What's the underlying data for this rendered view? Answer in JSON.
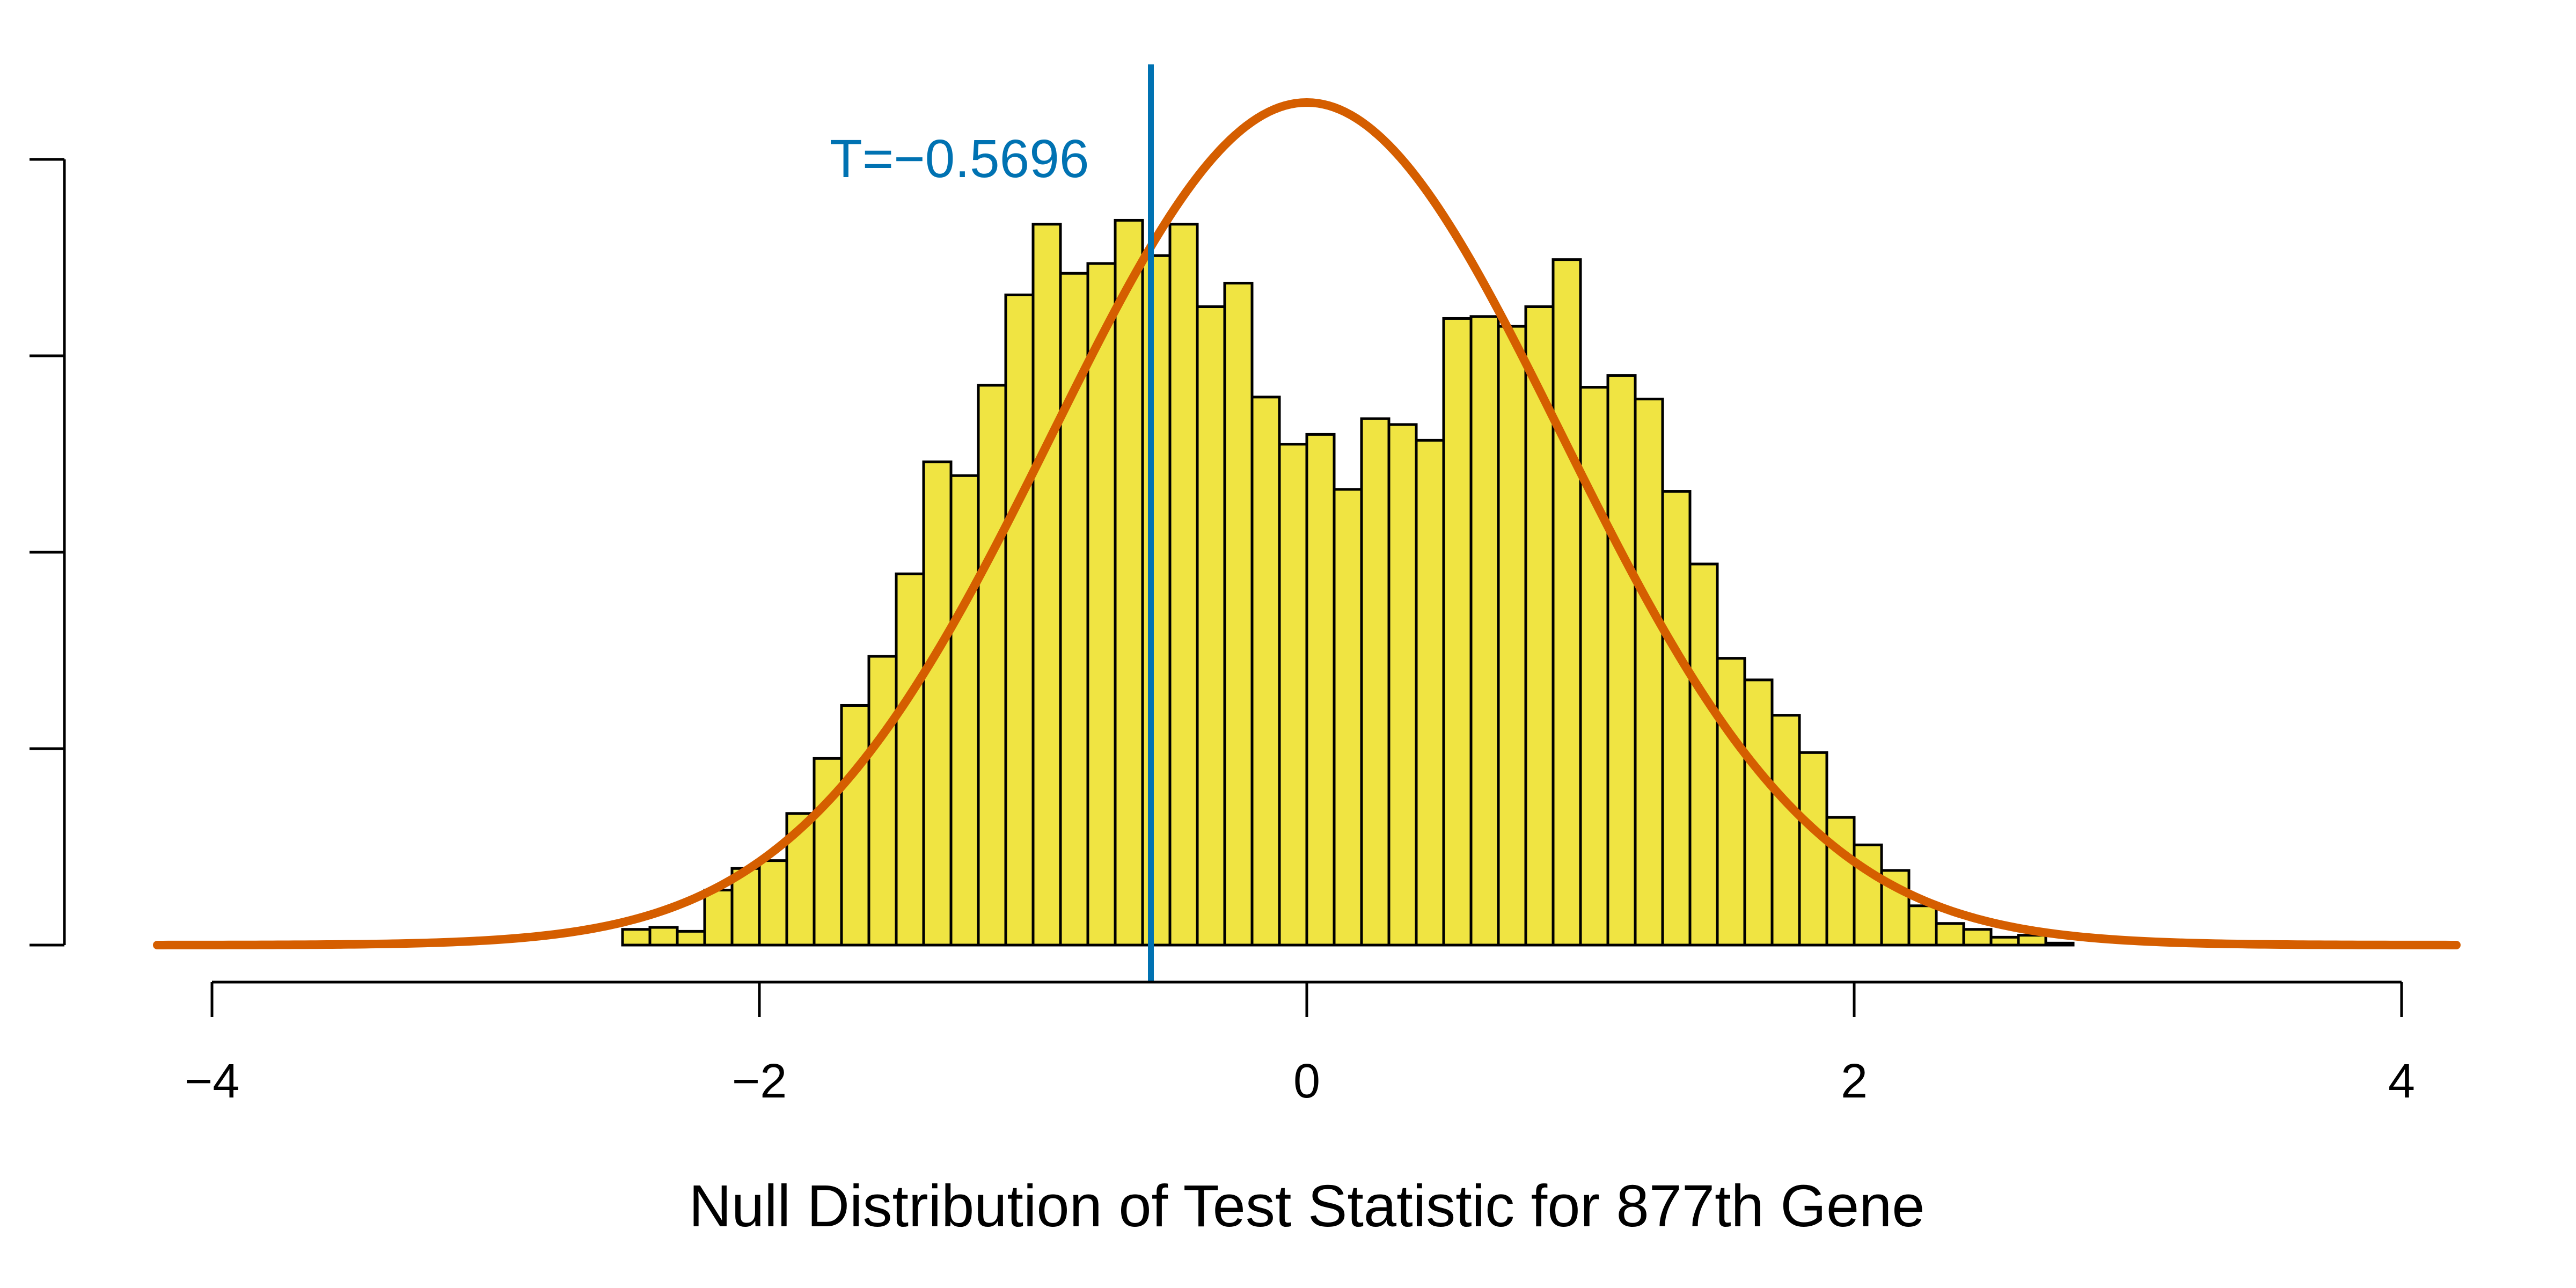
{
  "chart_data": {
    "type": "bar",
    "title": "",
    "xlabel": "Null Distribution of Test Statistic for 877th Gene",
    "ylabel": "",
    "xlim": [
      -4.2,
      4.2
    ],
    "ylim": [
      0,
      0.44
    ],
    "x_ticks": [
      -4,
      -2,
      0,
      2,
      4
    ],
    "x_tick_labels": [
      "−4",
      "−2",
      "0",
      "2",
      "4"
    ],
    "y_ticks": [
      0,
      0.1,
      0.2,
      0.3,
      0.4
    ],
    "grid": false,
    "bin_width": 0.1,
    "bin_start": -3.0,
    "histogram_values": [
      0.0,
      0.0,
      0.0,
      0.0,
      0.0,
      0.008,
      0.009,
      0.007,
      0.028,
      0.039,
      0.043,
      0.067,
      0.095,
      0.122,
      0.147,
      0.189,
      0.246,
      0.239,
      0.285,
      0.331,
      0.367,
      0.342,
      0.347,
      0.369,
      0.351,
      0.367,
      0.325,
      0.337,
      0.279,
      0.255,
      0.26,
      0.232,
      0.268,
      0.265,
      0.257,
      0.319,
      0.32,
      0.315,
      0.325,
      0.349,
      0.284,
      0.29,
      0.278,
      0.231,
      0.194,
      0.146,
      0.135,
      0.117,
      0.098,
      0.065,
      0.051,
      0.038,
      0.02,
      0.011,
      0.008,
      0.004,
      0.005,
      0.001,
      0.0,
      0.0,
      0.0
    ],
    "density_curve": {
      "type": "normal",
      "mean": 0,
      "sd": 0.93,
      "color": "#D55E00"
    },
    "vertical_line": {
      "x": -0.5696,
      "label": "T=−0.5696",
      "color": "#0072B2"
    },
    "colors": {
      "bar_fill": "#F0E442",
      "bar_stroke": "#000000",
      "axis": "#000000"
    }
  }
}
